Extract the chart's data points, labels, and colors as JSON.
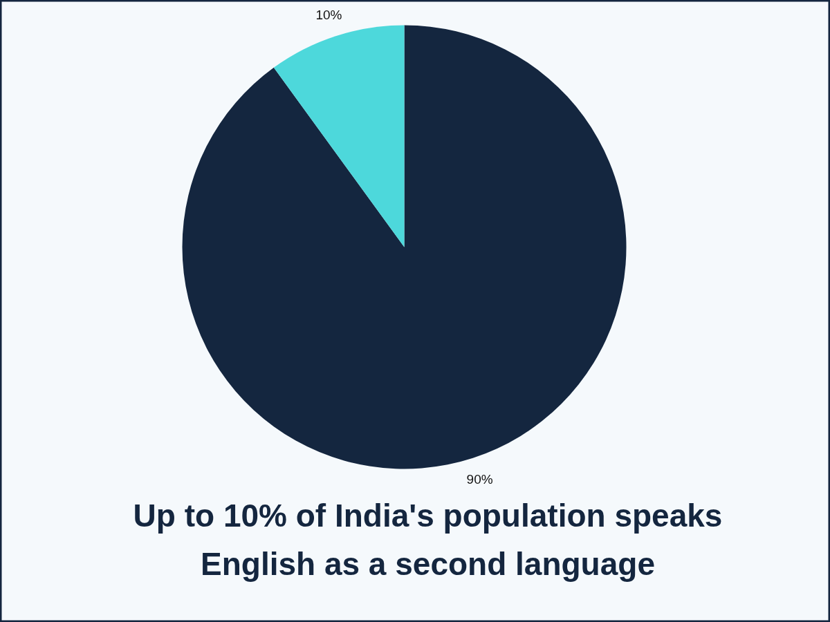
{
  "chart_data": {
    "type": "pie",
    "title": "Up to 10% of India's population speaks English as a second language",
    "categories": [
      null,
      null
    ],
    "values": [
      90,
      10
    ],
    "colors": [
      "#14263f",
      "#4dd8db"
    ],
    "value_labels": [
      "90%",
      "10%"
    ]
  }
}
